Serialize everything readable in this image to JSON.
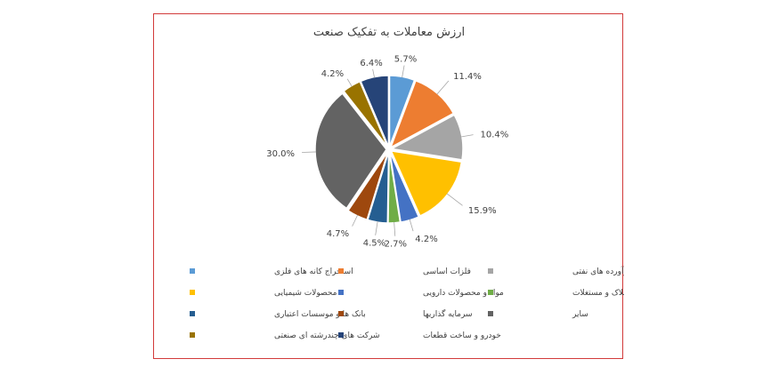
{
  "chart_data": {
    "type": "pie",
    "title": "ارزش معاملات به تفکیک صنعت",
    "slices": [
      {
        "name": "استخراج کانه های فلزی",
        "value": 5.7,
        "label": "5.7%",
        "color": "#5b9bd5"
      },
      {
        "name": "فلزات اساسی",
        "value": 11.4,
        "label": "11.4%",
        "color": "#ed7d31"
      },
      {
        "name": "فرآورده های نفتی",
        "value": 10.4,
        "label": "10.4%",
        "color": "#a5a5a5"
      },
      {
        "name": "محصولات شیمیایی",
        "value": 15.9,
        "label": "15.9%",
        "color": "#ffc000"
      },
      {
        "name": "مواد و محصولات دارویی",
        "value": 4.2,
        "label": "4.2%",
        "color": "#4472c4"
      },
      {
        "name": "انبوه سازی، املاک و مستغلات",
        "value": 2.7,
        "label": "2.7%",
        "color": "#70ad47"
      },
      {
        "name": "بانک ها و موسسات اعتباری",
        "value": 4.5,
        "label": "4.5%",
        "color": "#255e91"
      },
      {
        "name": "سرمایه گذاریها",
        "value": 4.7,
        "label": "4.7%",
        "color": "#9e480e"
      },
      {
        "name": "سایر",
        "value": 30.0,
        "label": "30.0%",
        "color": "#636363"
      },
      {
        "name": "شرکت های چندرشته ای صنعتی",
        "value": 4.2,
        "label": "4.2%",
        "color": "#997300"
      },
      {
        "name": "خودرو و ساخت قطعات",
        "value": 6.4,
        "label": "6.4%",
        "color": "#264478"
      }
    ],
    "legend_position": "bottom"
  }
}
